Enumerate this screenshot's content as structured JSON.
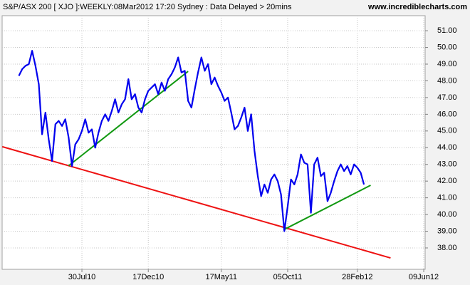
{
  "chart_data": {
    "type": "line",
    "title": "S&P/ASX 200 [ XJO ]:WEEKLY:08Mar2012 17:20 Sydney : Data Delayed > 20mins",
    "source": "www.incrediblecharts.com",
    "categories": [
      null,
      null,
      null,
      null,
      null,
      null,
      null,
      null,
      null,
      null,
      null,
      null,
      null,
      null,
      null,
      null,
      null,
      null,
      null,
      null,
      null,
      null,
      null,
      null,
      "30Jul10",
      null,
      null,
      null,
      null,
      null,
      null,
      null,
      null,
      null,
      null,
      null,
      null,
      null,
      null,
      null,
      null,
      null,
      null,
      null,
      "17Dec10",
      null,
      null,
      null,
      null,
      null,
      null,
      null,
      null,
      null,
      null,
      null,
      null,
      null,
      null,
      null,
      null,
      null,
      null,
      null,
      null,
      null,
      "17May11",
      null,
      null,
      null,
      null,
      null,
      null,
      null,
      null,
      null,
      null,
      null,
      null,
      null,
      null,
      null,
      null,
      null,
      null,
      null,
      "05Oct11",
      null,
      null,
      null,
      null,
      null,
      null,
      null,
      null,
      null,
      null,
      null,
      null,
      null,
      null,
      null,
      null,
      null,
      null,
      null,
      null,
      "28Feb12",
      null,
      null,
      null,
      null,
      null,
      null,
      null,
      null,
      null,
      null,
      null,
      null,
      null,
      null,
      null,
      null,
      null,
      null,
      null,
      "09Jun12"
    ],
    "series": [
      {
        "color": "#0000ee",
        "values": [
          null,
          null,
          null,
          null,
          null,
          48.3,
          48.7,
          48.9,
          49.0,
          49.8,
          48.9,
          47.8,
          44.8,
          46.1,
          44.5,
          43.2,
          45.4,
          45.6,
          45.3,
          45.7,
          44.6,
          42.9,
          44.2,
          44.5,
          45.0,
          45.7,
          44.9,
          45.1,
          44.0,
          44.9,
          45.6,
          46.0,
          45.6,
          46.2,
          46.9,
          46.1,
          46.6,
          46.9,
          48.1,
          46.9,
          47.2,
          46.4,
          46.1,
          46.9,
          47.4,
          47.6,
          47.8,
          47.2,
          47.9,
          47.4,
          48.1,
          48.4,
          48.8,
          49.4,
          48.5,
          48.6,
          46.8,
          46.4,
          47.5,
          48.5,
          49.4,
          48.6,
          49.0,
          47.8,
          48.2,
          47.7,
          47.3,
          46.8,
          47.0,
          46.1,
          45.1,
          45.3,
          45.8,
          46.4,
          45.0,
          46.0,
          43.8,
          42.3,
          41.1,
          41.8,
          41.3,
          42.1,
          42.4,
          42.0,
          41.2,
          39.0,
          40.5,
          42.1,
          41.8,
          42.4,
          43.6,
          43.1,
          43.0,
          40.1,
          43.0,
          43.4,
          42.3,
          42.5,
          40.8,
          41.3,
          42.0,
          42.6,
          43.0,
          42.6,
          42.9,
          42.4,
          43.0,
          42.8,
          42.5,
          41.8,
          null,
          null,
          null,
          null,
          null,
          null,
          null,
          null,
          null,
          null,
          null,
          null,
          null,
          null,
          null,
          null,
          null,
          null
        ]
      }
    ],
    "trendlines": [
      {
        "color": "#ee1111",
        "start": {
          "index": 0,
          "value": 44.06
        },
        "end": {
          "index": 117,
          "value": 37.4
        }
      },
      {
        "color": "#119911",
        "start": {
          "index": 20,
          "value": 42.92
        },
        "end": {
          "index": 56,
          "value": 48.57
        }
      },
      {
        "color": "#119911",
        "start": {
          "index": 85,
          "value": 39.11
        },
        "end": {
          "index": 111,
          "value": 41.75
        }
      }
    ],
    "ylim": [
      36.72,
      51.9
    ],
    "yticks": [
      {
        "value": 38,
        "label": "38.00"
      },
      {
        "value": 39,
        "label": "39.00"
      },
      {
        "value": 40,
        "label": "40.00"
      },
      {
        "value": 41,
        "label": "41.00"
      },
      {
        "value": 42,
        "label": "42.00"
      },
      {
        "value": 43,
        "label": "43.00"
      },
      {
        "value": 44,
        "label": "44.00"
      },
      {
        "value": 45,
        "label": "45.00"
      },
      {
        "value": 46,
        "label": "46.00"
      },
      {
        "value": 47,
        "label": "47.00"
      },
      {
        "value": 48,
        "label": "48.00"
      },
      {
        "value": 49,
        "label": "49.00"
      },
      {
        "value": 50,
        "label": "50.00"
      },
      {
        "value": 51,
        "label": "51.00"
      }
    ],
    "grid": true
  }
}
